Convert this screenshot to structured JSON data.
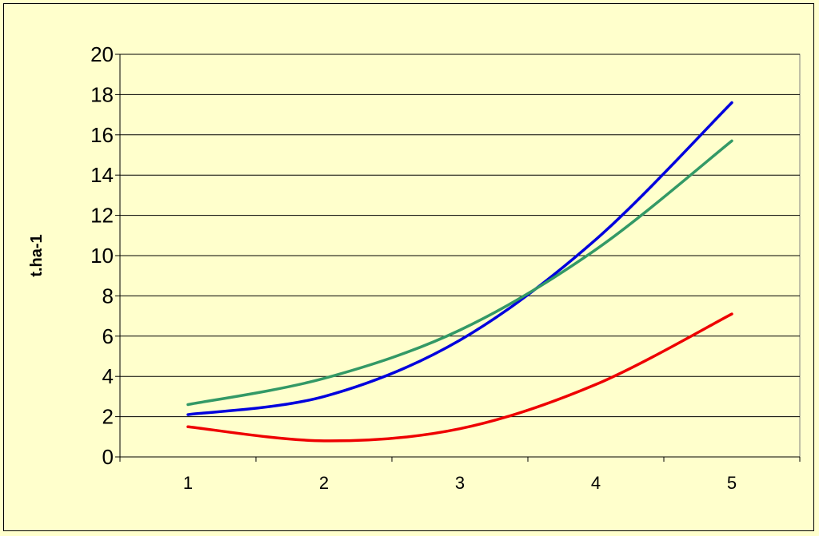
{
  "chart_data": {
    "type": "line",
    "title": "",
    "xlabel": "",
    "ylabel": "t.ha-1",
    "x": [
      1,
      2,
      3,
      4,
      5
    ],
    "xlim": [
      0.5,
      5.5
    ],
    "ylim": [
      0,
      20
    ],
    "yticks": [
      0,
      2,
      4,
      6,
      8,
      10,
      12,
      14,
      16,
      18,
      20
    ],
    "grid": "horizontal",
    "legend": "none",
    "series": [
      {
        "color": "#0000dd",
        "values": [
          2.1,
          3.0,
          5.8,
          10.8,
          17.6
        ]
      },
      {
        "color": "#339966",
        "values": [
          2.6,
          3.9,
          6.3,
          10.3,
          15.7
        ]
      },
      {
        "color": "#ee0000",
        "values": [
          1.5,
          0.8,
          1.4,
          3.6,
          7.1
        ]
      }
    ]
  }
}
